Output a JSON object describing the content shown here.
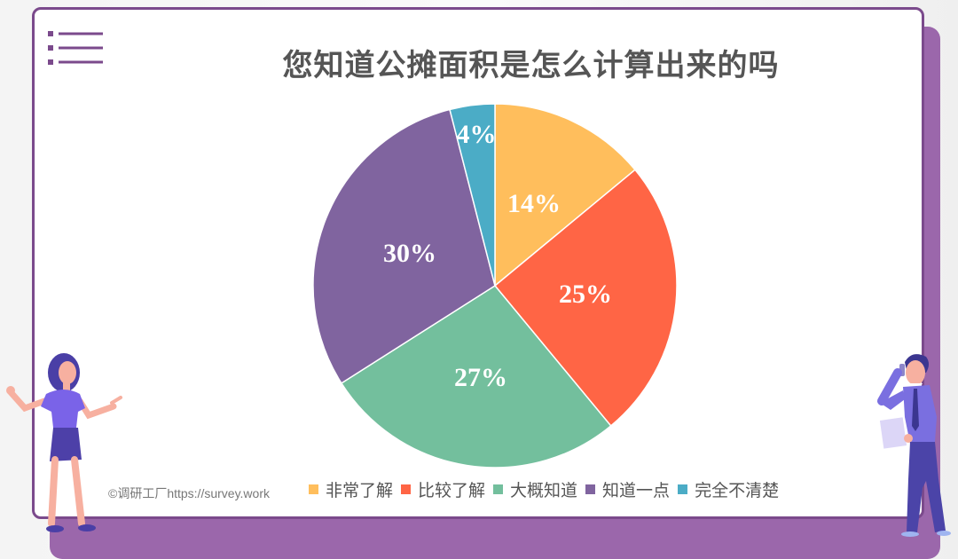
{
  "page": {
    "title": "您知道公摊面积是怎么计算出来的吗",
    "copyright": "©调研工厂https://survey.work",
    "icons": {
      "header": "list-icon",
      "left_figure": "woman-presenting-illustration",
      "right_figure": "man-on-phone-illustration"
    },
    "colors": {
      "frame": "#7b4a8c",
      "shadow_panel": "#9b67ab",
      "title_text": "#555555"
    }
  },
  "legend": [
    {
      "label": "非常了解",
      "color": "#ffbe5c"
    },
    {
      "label": "比较了解",
      "color": "#ff6545"
    },
    {
      "label": "大概知道",
      "color": "#73bf9d"
    },
    {
      "label": "知道一点",
      "color": "#80649f"
    },
    {
      "label": "完全不清楚",
      "color": "#4bacc6"
    }
  ],
  "slices": [
    {
      "label": "14%"
    },
    {
      "label": "25%"
    },
    {
      "label": "27%"
    },
    {
      "label": "30%"
    },
    {
      "label": "4%"
    }
  ],
  "chart_data": {
    "type": "pie",
    "title": "您知道公摊面积是怎么计算出来的吗",
    "categories": [
      "非常了解",
      "比较了解",
      "大概知道",
      "知道一点",
      "完全不清楚"
    ],
    "values": [
      14,
      25,
      27,
      30,
      4
    ],
    "unit": "%",
    "colors": [
      "#ffbe5c",
      "#ff6545",
      "#73bf9d",
      "#80649f",
      "#4bacc6"
    ],
    "start_angle": "12 o'clock",
    "direction": "clockwise",
    "data_labels": [
      "14%",
      "25%",
      "27%",
      "30%",
      "4%"
    ],
    "legend_position": "bottom"
  }
}
